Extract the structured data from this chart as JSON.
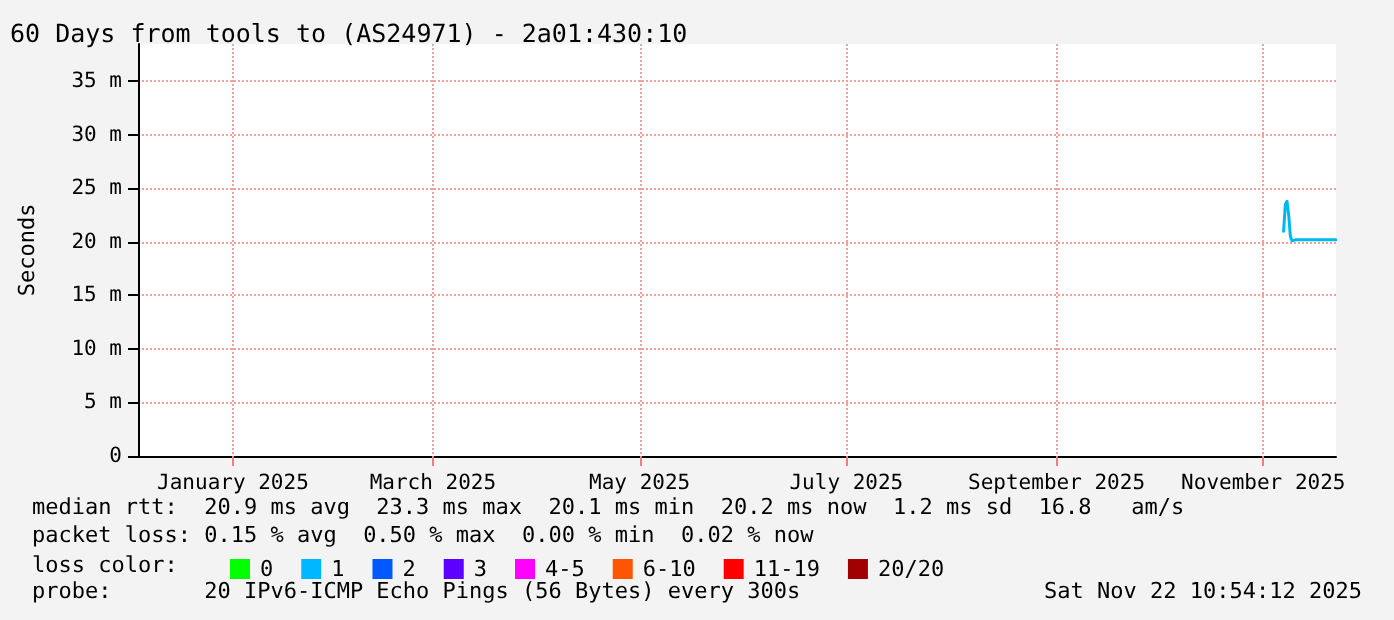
{
  "chart_data": {
    "type": "line",
    "title": "60 Days from tools to (AS24971) - 2a01:430:10",
    "ylabel": "Seconds",
    "x": [
      "2025-11-07T00:00",
      "2025-11-07T12:00",
      "2025-11-08T00:00",
      "2025-11-08T12:00",
      "2025-11-09T00:00",
      "2025-11-09T12:00",
      "2025-11-10T12:00",
      "2025-11-13T00:00",
      "2025-11-16T00:00",
      "2025-11-19T00:00",
      "2025-11-22T10:00"
    ],
    "series": [
      {
        "color": "#00b8f0",
        "values": [
          21.0,
          23.5,
          23.8,
          22.5,
          20.5,
          20.1,
          20.2,
          20.2,
          20.2,
          20.2,
          20.2
        ]
      },
      {
        "name": "0",
        "color": "#00ff00",
        "values": [
          null,
          null,
          null,
          null,
          null,
          null,
          null,
          null,
          null,
          null,
          null
        ]
      },
      {
        "name": "1",
        "color": "#00b8ff",
        "values": [
          null,
          null,
          null,
          null,
          null,
          null,
          null,
          null,
          null,
          null,
          null
        ]
      },
      {
        "name": "2",
        "color": "#0059ff",
        "values": [
          null,
          null,
          null,
          null,
          null,
          null,
          null,
          null,
          null,
          null,
          null
        ]
      },
      {
        "name": "3",
        "color": "#5e00ff",
        "values": [
          null,
          null,
          null,
          null,
          null,
          null,
          null,
          null,
          null,
          null,
          null
        ]
      },
      {
        "name": "4-5",
        "color": "#ff00ff",
        "values": [
          null,
          null,
          null,
          null,
          null,
          null,
          null,
          null,
          null,
          null,
          null
        ]
      },
      {
        "name": "6-10",
        "color": "#ff5500",
        "values": [
          null,
          null,
          null,
          null,
          null,
          null,
          null,
          null,
          null,
          null,
          null
        ]
      },
      {
        "name": "11-19",
        "color": "#ff0000",
        "values": [
          null,
          null,
          null,
          null,
          null,
          null,
          null,
          null,
          null,
          null,
          null
        ]
      },
      {
        "name": "20/20",
        "color": "#a10000",
        "values": [
          null,
          null,
          null,
          null,
          null,
          null,
          null,
          null,
          null,
          null,
          null
        ]
      }
    ],
    "legend": "bottom",
    "legend_title": "loss color:",
    "xlim": [
      "2024-12-04",
      "2025-11-22T10:54"
    ],
    "xticks": [
      {
        "value": "2025-01-01",
        "label": "January 2025"
      },
      {
        "value": "2025-03-01",
        "label": "March 2025"
      },
      {
        "value": "2025-05-01",
        "label": "May 2025"
      },
      {
        "value": "2025-07-01",
        "label": "July 2025"
      },
      {
        "value": "2025-09-01",
        "label": "September 2025"
      },
      {
        "value": "2025-11-01",
        "label": "November 2025"
      }
    ],
    "ylim": [
      0,
      38.5
    ],
    "yticks": [
      0,
      {
        "value": 5,
        "label": "5 m"
      },
      {
        "value": 10,
        "label": "10 m"
      },
      {
        "value": 15,
        "label": "15 m"
      },
      {
        "value": 20,
        "label": "20 m"
      },
      {
        "value": 25,
        "label": "25 m"
      },
      {
        "value": 30,
        "label": "30 m"
      },
      {
        "value": 35,
        "label": "35 m"
      }
    ],
    "grid": true,
    "marker": "none",
    "line_style": "solid",
    "annotations": [
      "median rtt:  20.9 ms avg  23.3 ms max  20.1 ms min  20.2 ms now  1.2 ms sd  16.8   am/s",
      "packet loss: 0.15 % avg  0.50 % max  0.00 % min  0.02 % now",
      "probe:       20 IPv6-ICMP Echo Pings (56 Bytes) every 300s",
      "Sat Nov 22 10:54:12 2025"
    ]
  }
}
